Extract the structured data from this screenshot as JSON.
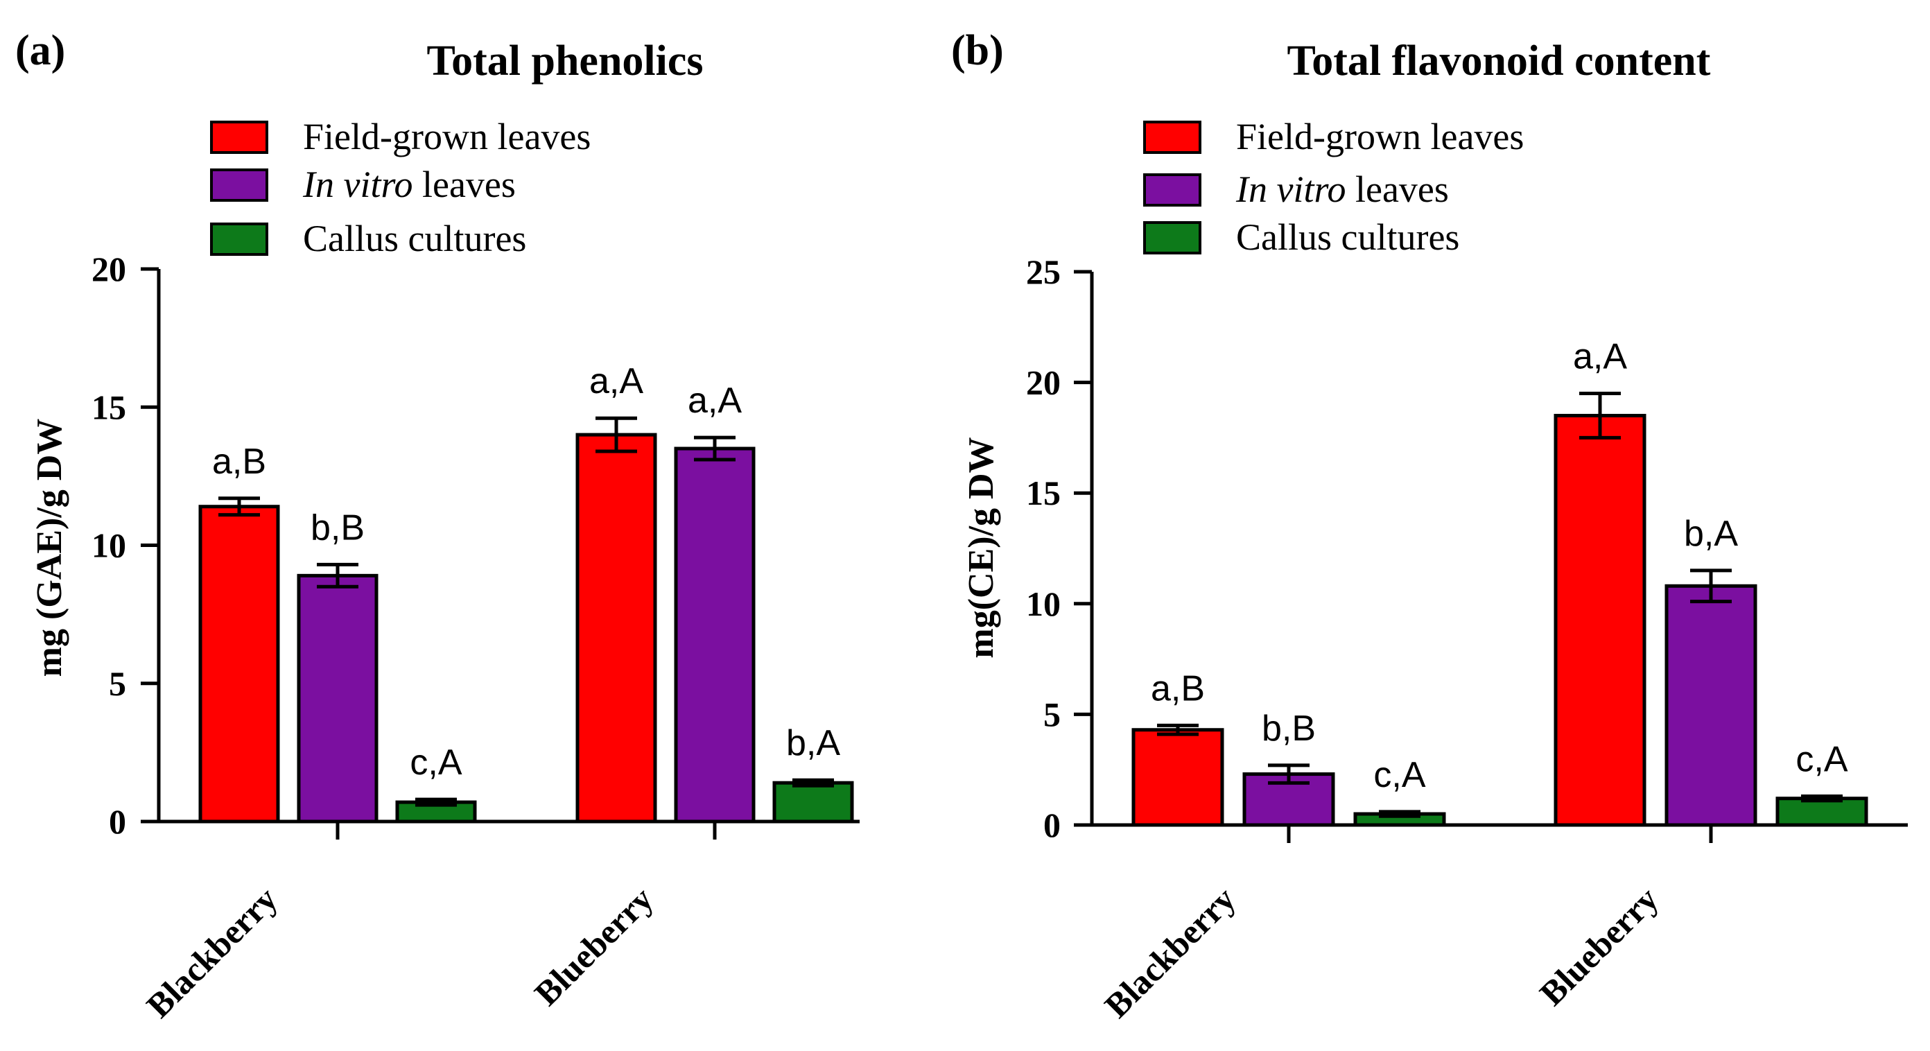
{
  "colors": {
    "field": "#ff0000",
    "vitro": "#7b0fa0",
    "callus": "#0d7a1a",
    "axis": "#000000"
  },
  "legend": {
    "field_label": "Field-grown leaves",
    "vitro_italic": "In vitro",
    "vitro_rest": " leaves",
    "callus_label": "Callus cultures"
  },
  "chart_data": [
    {
      "panel_label": "(a)",
      "type": "bar",
      "title": "Total phenolics",
      "ylabel": "mg (GAE)/g DW",
      "xlabel": "",
      "ylim": [
        0,
        20
      ],
      "yticks": [
        0,
        5,
        10,
        15,
        20
      ],
      "categories": [
        "Blackberry",
        "Blueberry"
      ],
      "series": [
        {
          "name": "Field-grown leaves",
          "values": [
            11.4,
            14.0
          ],
          "errors": [
            0.3,
            0.6
          ],
          "annotations": [
            "a,B",
            "a,A"
          ]
        },
        {
          "name": "In vitro leaves",
          "values": [
            8.9,
            13.5
          ],
          "errors": [
            0.4,
            0.4
          ],
          "annotations": [
            "b,B",
            "a,A"
          ]
        },
        {
          "name": "Callus cultures",
          "values": [
            0.7,
            1.4
          ],
          "errors": [
            0.1,
            0.1
          ],
          "annotations": [
            "c,A",
            "b,A"
          ]
        }
      ]
    },
    {
      "panel_label": "(b)",
      "type": "bar",
      "title": "Total flavonoid content",
      "ylabel": "mg(CE)/g DW",
      "xlabel": "",
      "ylim": [
        0,
        25
      ],
      "yticks": [
        0,
        5,
        10,
        15,
        20,
        25
      ],
      "categories": [
        "Blackberry",
        "Blueberry"
      ],
      "series": [
        {
          "name": "Field-grown leaves",
          "values": [
            4.3,
            18.5
          ],
          "errors": [
            0.2,
            1.0
          ],
          "annotations": [
            "a,B",
            "a,A"
          ]
        },
        {
          "name": "In vitro leaves",
          "values": [
            2.3,
            10.8
          ],
          "errors": [
            0.4,
            0.7
          ],
          "annotations": [
            "b,B",
            "b,A"
          ]
        },
        {
          "name": "Callus cultures",
          "values": [
            0.5,
            1.2
          ],
          "errors": [
            0.1,
            0.1
          ],
          "annotations": [
            "c,A",
            "c,A"
          ]
        }
      ]
    }
  ]
}
